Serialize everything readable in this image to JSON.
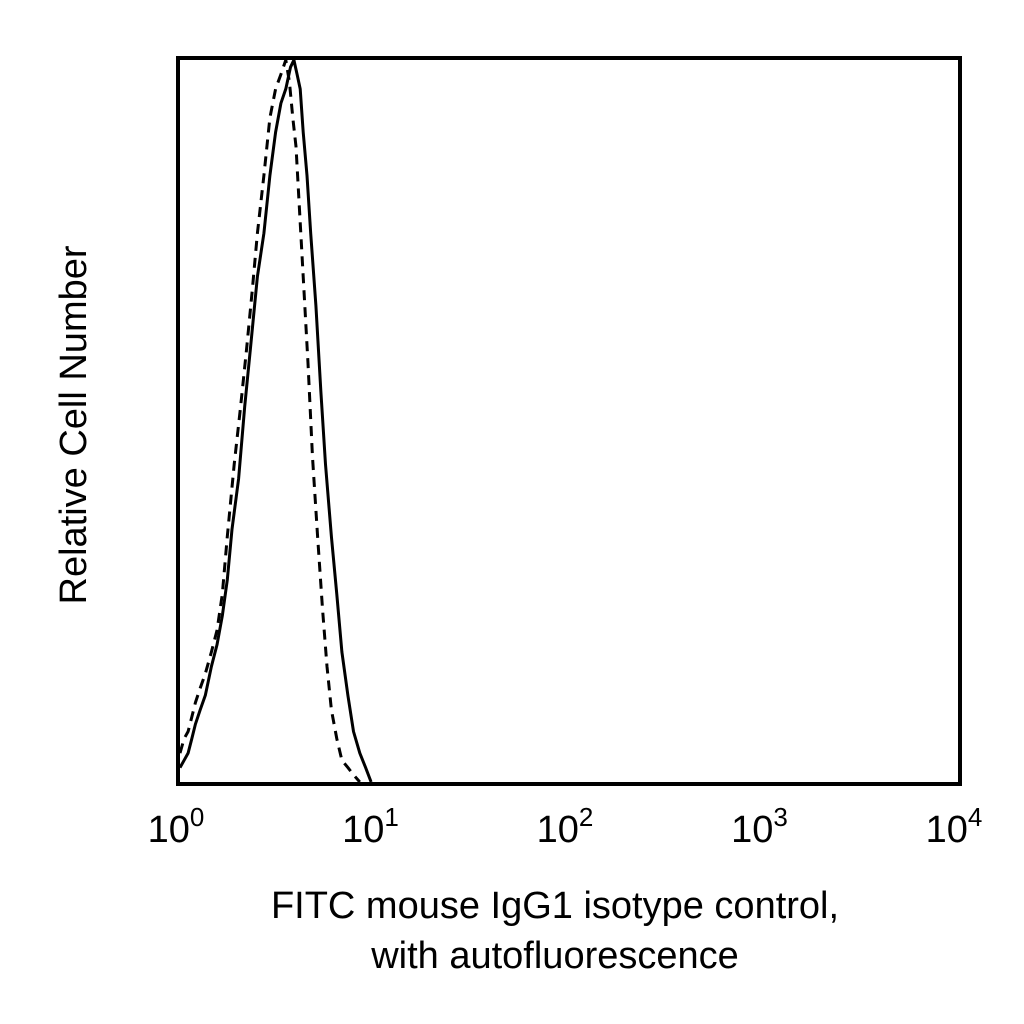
{
  "chart_data": {
    "type": "line",
    "title": "",
    "xscale": "log",
    "xlim": [
      1,
      10000
    ],
    "ylim": [
      0,
      100
    ],
    "grid": false,
    "legend": "none",
    "ylabel": "Relative Cell Number",
    "xlabel_lines": [
      "FITC mouse IgG1 isotype control,",
      "with autofluorescence"
    ],
    "x_ticks": [
      {
        "base": "10",
        "exp": "0",
        "value": 1
      },
      {
        "base": "10",
        "exp": "1",
        "value": 10
      },
      {
        "base": "10",
        "exp": "2",
        "value": 100
      },
      {
        "base": "10",
        "exp": "3",
        "value": 1000
      },
      {
        "base": "10",
        "exp": "4",
        "value": 10000
      }
    ],
    "series": [
      {
        "style": "solid",
        "color": "#000000",
        "x": [
          1.0,
          1.05,
          1.1,
          1.15,
          1.2,
          1.27,
          1.35,
          1.45,
          1.55,
          1.65,
          1.75,
          1.85,
          2.0,
          2.15,
          2.3,
          2.5,
          2.7,
          2.9,
          3.1,
          3.3,
          3.5,
          3.7,
          3.85,
          4.0,
          4.15,
          4.3,
          4.5,
          4.7,
          5.0,
          5.3,
          5.6,
          6.0,
          6.4,
          6.8,
          7.3,
          7.8,
          8.4,
          9.0,
          9.6
        ],
        "y": [
          2,
          3,
          4,
          6,
          8,
          10,
          12,
          16,
          19,
          23,
          28,
          35,
          42,
          52,
          60,
          70,
          76,
          84,
          90,
          94,
          96,
          99,
          100,
          98,
          96,
          90,
          84,
          76,
          66,
          54,
          44,
          34,
          26,
          18,
          12,
          7,
          4,
          2,
          0
        ]
      },
      {
        "style": "dashed",
        "color": "#000000",
        "x": [
          1.0,
          1.05,
          1.1,
          1.15,
          1.2,
          1.27,
          1.35,
          1.45,
          1.55,
          1.65,
          1.75,
          1.9,
          2.05,
          2.2,
          2.35,
          2.5,
          2.7,
          2.9,
          3.1,
          3.3,
          3.5,
          3.65,
          3.8,
          3.95,
          4.1,
          4.3,
          4.55,
          4.8,
          5.1,
          5.4,
          5.7,
          6.0,
          6.4,
          6.8,
          7.3,
          7.8,
          8.4
        ],
        "y": [
          4,
          6,
          7,
          9,
          11,
          13,
          15,
          18,
          21,
          26,
          34,
          44,
          52,
          60,
          68,
          76,
          84,
          92,
          96,
          98,
          100,
          97,
          92,
          88,
          80,
          70,
          58,
          45,
          34,
          24,
          16,
          10,
          6,
          3,
          2,
          1,
          0
        ]
      }
    ]
  }
}
